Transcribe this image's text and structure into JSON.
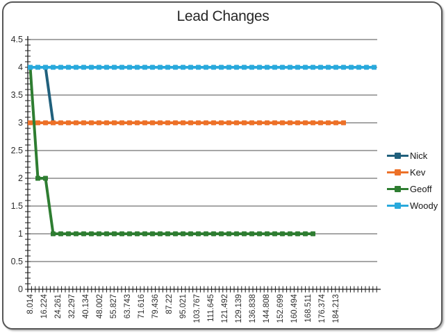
{
  "chart_data": {
    "type": "line",
    "title": "Lead Changes",
    "xlabel": "",
    "ylabel": "",
    "ylim": [
      0,
      4.5
    ],
    "y_tick_step": 0.5,
    "y_tick_labels": [
      "0",
      "0.5",
      "1",
      "1.5",
      "2",
      "2.5",
      "3",
      "3.5",
      "4",
      "4.5"
    ],
    "x_tick_labels": [
      "8.014",
      "16.224",
      "24.261",
      "32.297",
      "40.134",
      "48.002",
      "55.827",
      "63.743",
      "71.616",
      "79.436",
      "87.22",
      "95.021",
      "103.767",
      "111.645",
      "121.492",
      "129.139",
      "136.838",
      "144.808",
      "152.699",
      "160.494",
      "168.511",
      "176.374",
      "184.213"
    ],
    "grid": "horizontal-major-on",
    "legend_position": "right",
    "marker": "square",
    "axis_color": "#1a1a1a",
    "gridline_color": "#4c4c4c",
    "series": [
      {
        "name": "Nick",
        "color": "#20607C",
        "values": [
          4,
          4,
          4,
          3
        ]
      },
      {
        "name": "Kev",
        "color": "#ED7128",
        "values": [
          3,
          3,
          3,
          3,
          3,
          3,
          3,
          3,
          3,
          3,
          3,
          3,
          3,
          3,
          3,
          3,
          3,
          3,
          3,
          3,
          3,
          3,
          3,
          3,
          3,
          3,
          3,
          3,
          3,
          3,
          3,
          3,
          3,
          3,
          3,
          3,
          3,
          3,
          3,
          3,
          3,
          3
        ]
      },
      {
        "name": "Geoff",
        "color": "#2E7D31",
        "values": [
          4,
          2,
          2,
          1,
          1,
          1,
          1,
          1,
          1,
          1,
          1,
          1,
          1,
          1,
          1,
          1,
          1,
          1,
          1,
          1,
          1,
          1,
          1,
          1,
          1,
          1,
          1,
          1,
          1,
          1,
          1,
          1,
          1,
          1,
          1,
          1,
          1,
          1
        ]
      },
      {
        "name": "Woody",
        "color": "#29A9DC",
        "values": [
          4,
          4,
          4,
          4,
          4,
          4,
          4,
          4,
          4,
          4,
          4,
          4,
          4,
          4,
          4,
          4,
          4,
          4,
          4,
          4,
          4,
          4,
          4,
          4,
          4,
          4,
          4,
          4,
          4,
          4,
          4,
          4,
          4,
          4,
          4,
          4,
          4,
          4,
          4,
          4,
          4,
          4,
          4,
          4,
          4,
          4
        ]
      }
    ]
  }
}
